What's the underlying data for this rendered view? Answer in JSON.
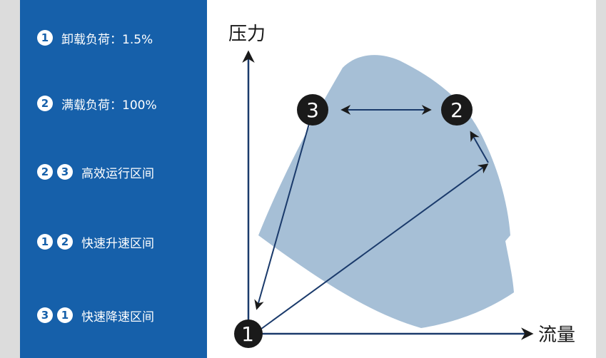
{
  "colors": {
    "sidebar": "#1660aa",
    "region": "#a6bfd6",
    "axis": "#1a3a6b",
    "node": "#1a1a1a"
  },
  "legend": [
    {
      "badges": [
        "1"
      ],
      "text": "卸载负荷：1.5%"
    },
    {
      "badges": [
        "2"
      ],
      "text": "满载负荷：100%"
    },
    {
      "badges": [
        "2",
        "3"
      ],
      "text": "高效运行区间"
    },
    {
      "badges": [
        "1",
        "2"
      ],
      "text": "快速升速区间"
    },
    {
      "badges": [
        "3",
        "1"
      ],
      "text": "快速降速区间"
    }
  ],
  "diagram": {
    "y_axis_label": "压力",
    "x_axis_label": "流量",
    "nodes": {
      "n1": "1",
      "n2": "2",
      "n3": "3"
    }
  }
}
